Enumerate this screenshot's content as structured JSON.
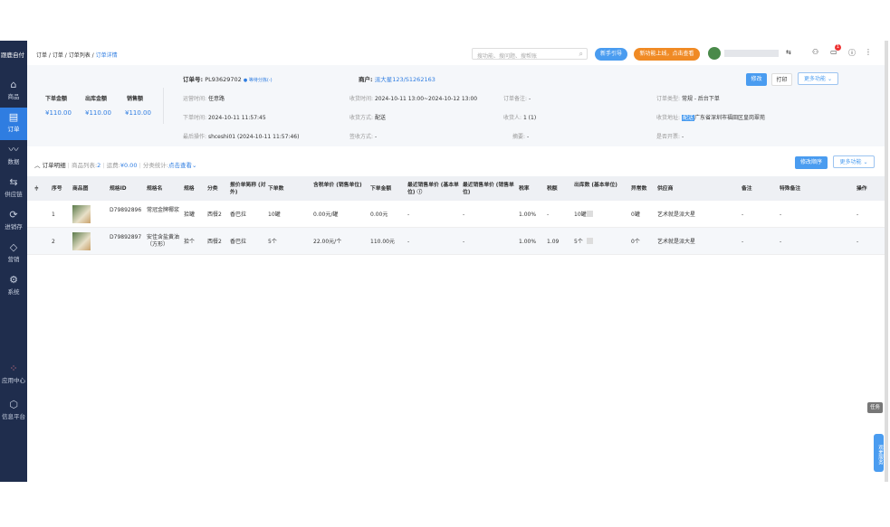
{
  "sidebar": {
    "logo": "跟鹿自付",
    "items": [
      {
        "label": "商品",
        "icon": "basket-icon"
      },
      {
        "label": "订单",
        "icon": "order-icon"
      },
      {
        "label": "数据",
        "icon": "chart-icon"
      },
      {
        "label": "供应链",
        "icon": "supply-icon"
      },
      {
        "label": "进销存",
        "icon": "inventory-icon"
      },
      {
        "label": "营销",
        "icon": "tag-icon"
      },
      {
        "label": "系统",
        "icon": "gear-icon"
      },
      {
        "label": "应用中心",
        "icon": "apps-icon"
      },
      {
        "label": "信息平台",
        "icon": "cube-icon"
      }
    ]
  },
  "topbar": {
    "breadcrumb": [
      "订单",
      "订单",
      "订单列表",
      "订单详情"
    ],
    "search_placeholder": "搜功能、搜问题、搜帮账",
    "guide_button": "新手引导",
    "new_feature_button": "新功能上线，点击查看",
    "badge_count": "1"
  },
  "header": {
    "summary": [
      {
        "label": "下单金额",
        "value": "¥110.00"
      },
      {
        "label": "出库金额",
        "value": "¥110.00"
      },
      {
        "label": "销售额",
        "value": "¥110.00"
      }
    ],
    "order_no_label": "订单号:",
    "order_no": "PL93629702",
    "order_status": "● 等待分拣(-)",
    "customer_label": "商户:",
    "customer": "派大星123/S1262163",
    "fields": [
      {
        "label": "运营时间:",
        "value": "任意路"
      },
      {
        "label": "收货时间:",
        "value": "2024-10-11 13:00~2024-10-12 13:00"
      },
      {
        "label": "订单备注:",
        "value": "-"
      },
      {
        "label": "订单类型:",
        "value": "常规 - 后台下单"
      },
      {
        "label": "下单时间:",
        "value": "2024-10-11 11:57:45"
      },
      {
        "label": "收货方式:",
        "value": "配送"
      },
      {
        "label": "收货人:",
        "value": "1 (1)"
      },
      {
        "label": "收货地址:",
        "value": "广东省深圳市福田区皇岗翠苑",
        "tag": "配送"
      },
      {
        "label": "最后操作:",
        "value": "shceshi01 (2024-10-11 11:57:46)"
      },
      {
        "label": "签收方式:",
        "value": "-"
      },
      {
        "label": "摘要:",
        "value": "-"
      },
      {
        "label": "是否开票:",
        "value": "-"
      }
    ],
    "edit_button": "修改",
    "print_button": "打印",
    "more_button": "更多功能"
  },
  "detail": {
    "title": "订单明细",
    "goods_label": "商品列表:",
    "goods_count": "2",
    "freight_label": "运费:",
    "freight": "¥0.00",
    "category_label": "分类统计:",
    "category_link": "点击查看",
    "reorder_button": "修改顺序",
    "more_button": "更多功能"
  },
  "table": {
    "columns": [
      "序号",
      "商品图",
      "规格ID",
      "规格名",
      "规格",
      "分类",
      "报价单简称 (对外)",
      "下单数",
      "含税单价 (销售单位)",
      "下单金额",
      "最近销售单价 (基本单位) ⓘ",
      "最近销售单价 (销售单位)",
      "税率",
      "税额",
      "出库数 (基本单位)",
      "异常数",
      "供应商",
      "备注",
      "特殊备注",
      "操作"
    ],
    "rows": [
      [
        "1",
        "",
        "D79892896",
        "常冠金牌椰浆",
        "拾罐",
        "西餐2",
        "香巴拉",
        "10罐",
        "0.00元/罐",
        "0.00元",
        "-",
        "-",
        "1.00%",
        "-",
        "10罐",
        "0罐",
        "艺术就是派大星",
        "-",
        "-",
        "-"
      ],
      [
        "2",
        "",
        "D79892897",
        "安佳含盐黄油（方形）",
        "拾个",
        "西餐2",
        "香巴拉",
        "5个",
        "22.00元/个",
        "110.00元",
        "-",
        "-",
        "1.00%",
        "1.09",
        "5个",
        "0个",
        "艺术就是派大星",
        "-",
        "-",
        "-"
      ]
    ]
  },
  "float": {
    "task": "任务",
    "service": "观麦服务"
  }
}
